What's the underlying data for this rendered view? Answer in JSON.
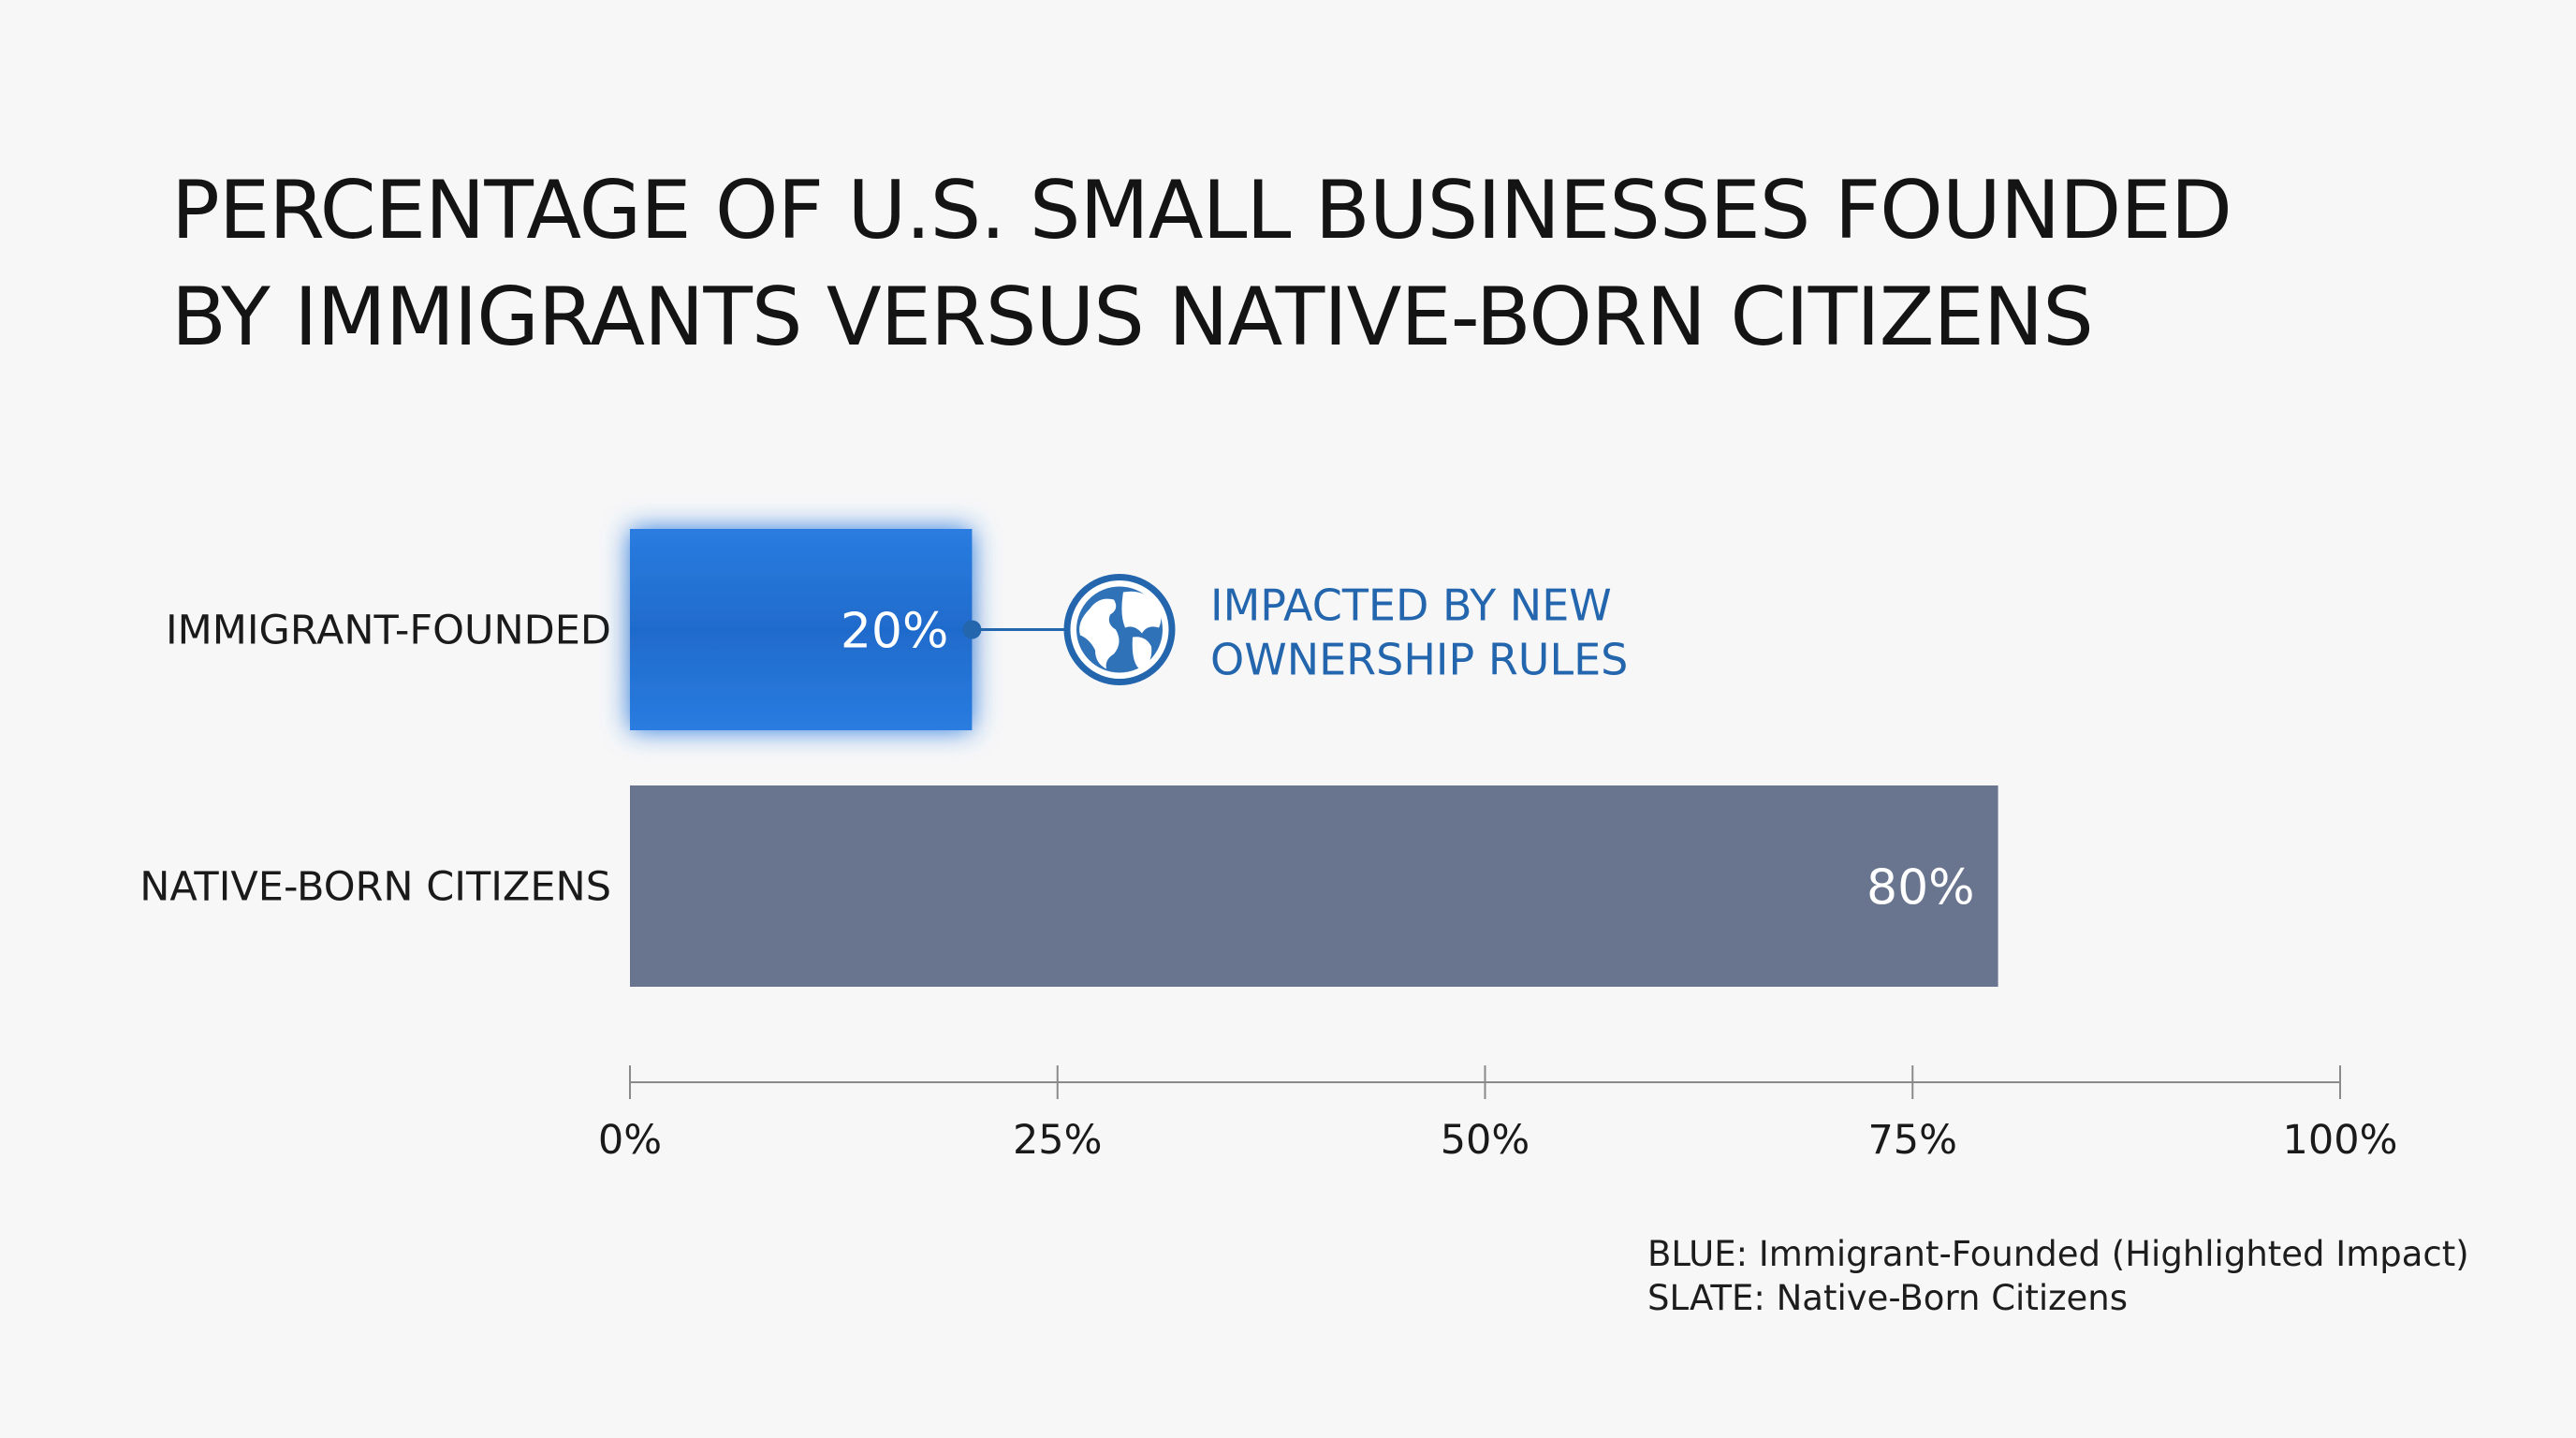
{
  "title_lines": [
    "PERCENTAGE OF U.S. SMALL BUSINESSES FOUNDED",
    "BY IMMIGRANTS VERSUS NATIVE-BORN CITIZENS"
  ],
  "colors": {
    "immigrant_bar": "#1f6fd0",
    "native_bar": "#69758f",
    "annotation": "#2366ad",
    "axis": "#8a8a8a",
    "background": "#f7f7f8"
  },
  "annotation": {
    "icon": "globe-icon",
    "lines": [
      "IMPACTED BY NEW",
      "OWNERSHIP RULES"
    ]
  },
  "legend": {
    "items": [
      "BLUE: Immigrant-Founded (Highlighted Impact)",
      "SLATE: Native-Born Citizens"
    ]
  },
  "chart_data": {
    "type": "bar",
    "orientation": "horizontal",
    "title": "PERCENTAGE OF U.S. SMALL BUSINESSES FOUNDED BY IMMIGRANTS VERSUS NATIVE-BORN CITIZENS",
    "categories": [
      "IMMIGRANT-FOUNDED",
      "NATIVE-BORN CITIZENS"
    ],
    "values": [
      20,
      80
    ],
    "value_labels": [
      "20%",
      "80%"
    ],
    "bar_colors": [
      "#1f6fd0",
      "#69758f"
    ],
    "highlighted": [
      true,
      false
    ],
    "xlim": [
      0,
      100
    ],
    "xticks": [
      0,
      25,
      50,
      75,
      100
    ],
    "xtick_labels": [
      "0%",
      "25%",
      "50%",
      "75%",
      "100%"
    ],
    "xlabel": "",
    "ylabel": "",
    "grid": false,
    "legend_position": "bottom-right"
  }
}
